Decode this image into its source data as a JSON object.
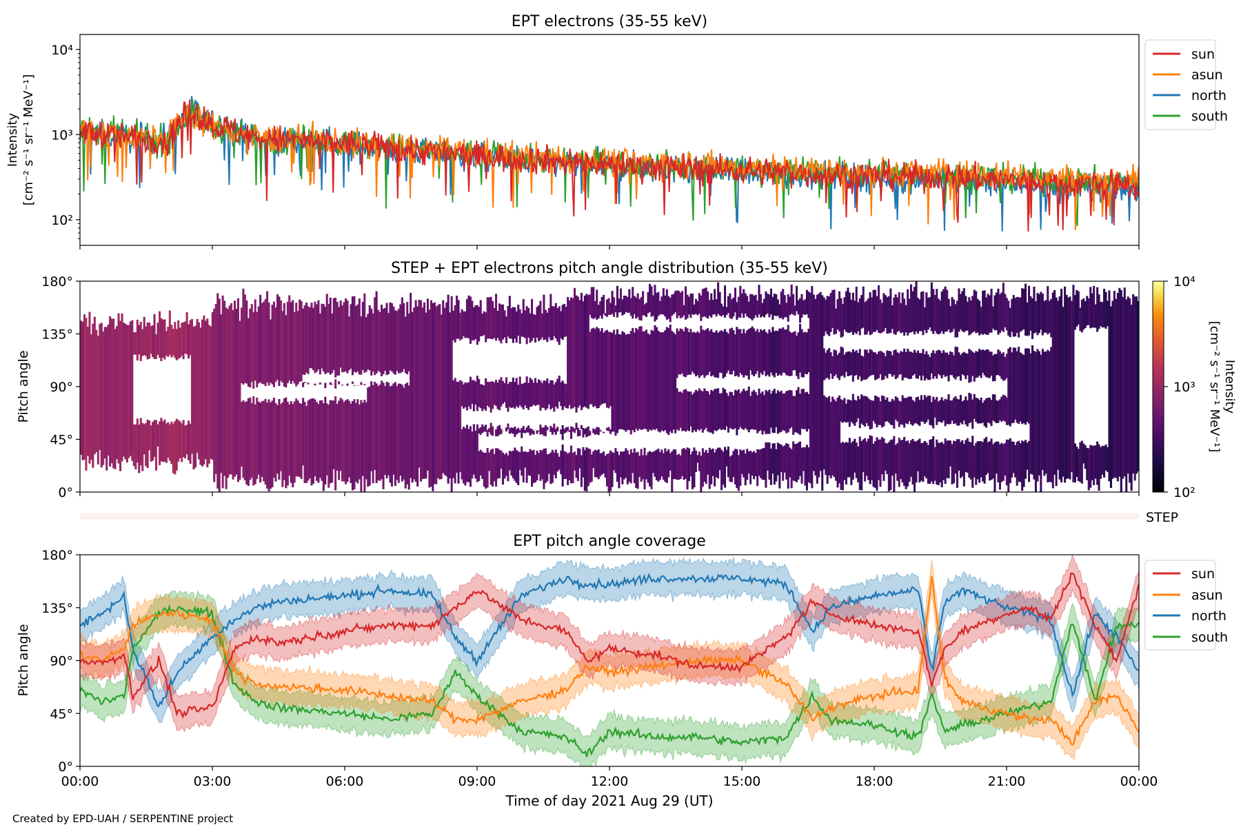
{
  "footer": "Created by EPD-UAH / SERPENTINE project",
  "colors": {
    "sun": "#d62728",
    "asun": "#ff7f0e",
    "north": "#1f77b4",
    "south": "#2ca02c",
    "step_strip": "#fdf0ea"
  },
  "chart_data": [
    {
      "type": "line",
      "title": "EPT electrons (35-55 keV)",
      "ylabel_line1": "Intensity",
      "ylabel_line2": "[cm⁻² s⁻¹ sr⁻¹ MeV⁻¹]",
      "yscale": "log",
      "ylim": [
        50,
        15000
      ],
      "yticks": [
        {
          "value": 100,
          "label": "10²"
        },
        {
          "value": 1000,
          "label": "10³"
        },
        {
          "value": 10000,
          "label": "10⁴"
        }
      ],
      "x_hours": [
        0,
        1,
        2,
        2.5,
        3,
        4,
        5,
        6,
        7,
        8,
        9,
        10,
        11,
        12,
        13,
        14,
        15,
        16,
        17,
        18,
        19,
        20,
        21,
        22,
        23,
        24
      ],
      "series": [
        {
          "name": "sun",
          "values": [
            1100,
            950,
            850,
            1900,
            1300,
            900,
            850,
            780,
            700,
            620,
            560,
            520,
            480,
            450,
            420,
            400,
            380,
            360,
            340,
            330,
            320,
            310,
            290,
            270,
            260,
            250
          ]
        },
        {
          "name": "asun",
          "values": [
            1150,
            980,
            900,
            1800,
            1250,
            920,
            880,
            800,
            740,
            660,
            600,
            560,
            520,
            490,
            460,
            440,
            420,
            400,
            380,
            370,
            360,
            350,
            330,
            310,
            300,
            290
          ]
        },
        {
          "name": "north",
          "values": [
            1050,
            930,
            860,
            1950,
            1350,
            880,
            820,
            760,
            680,
            600,
            540,
            500,
            460,
            430,
            400,
            380,
            360,
            340,
            320,
            310,
            300,
            290,
            270,
            250,
            240,
            230
          ]
        },
        {
          "name": "south",
          "values": [
            1100,
            960,
            880,
            1700,
            1280,
            900,
            860,
            790,
            720,
            640,
            580,
            540,
            500,
            470,
            440,
            420,
            400,
            380,
            360,
            350,
            340,
            330,
            310,
            290,
            280,
            270
          ]
        }
      ],
      "legend": [
        "sun",
        "asun",
        "north",
        "south"
      ],
      "legend_position": "outside-right"
    },
    {
      "type": "heatmap",
      "title": "STEP + EPT electrons pitch angle distribution (35-55 keV)",
      "ylabel": "Pitch angle",
      "ylim": [
        0,
        180
      ],
      "yticks": [
        "0°",
        "45°",
        "90°",
        "135°",
        "180°"
      ],
      "colorbar": {
        "label_line1": "Intensity",
        "label_line2": "[cm⁻² s⁻¹ sr⁻¹ MeV⁻¹]",
        "scale": "log",
        "range": [
          100,
          10000
        ],
        "ticks": [
          "10²",
          "10³",
          "10⁴"
        ],
        "colormap": "inferno"
      },
      "intensity_hours": [
        0,
        1,
        2,
        3,
        4,
        6,
        8,
        10,
        12,
        14,
        16,
        18,
        20,
        22,
        24
      ],
      "intensity_values": [
        1000,
        900,
        1100,
        800,
        700,
        600,
        520,
        460,
        420,
        380,
        340,
        320,
        300,
        270,
        250
      ]
    },
    {
      "type": "strip",
      "label": "STEP"
    },
    {
      "type": "line",
      "title": "EPT pitch angle coverage",
      "ylabel": "Pitch angle",
      "ylim": [
        0,
        180
      ],
      "yticks": [
        "0°",
        "45°",
        "90°",
        "135°",
        "180°"
      ],
      "xlabel": "Time of day 2021 Aug 29 (UT)",
      "xticks": [
        "00:00",
        "03:00",
        "06:00",
        "09:00",
        "12:00",
        "15:00",
        "18:00",
        "21:00",
        "00:00"
      ],
      "x_hours": [
        0,
        0.5,
        1,
        1.2,
        1.8,
        2.2,
        3,
        3.5,
        4,
        4.5,
        6,
        7,
        8,
        8.5,
        9,
        10,
        11,
        11.5,
        12,
        13,
        14,
        15,
        16,
        16.6,
        17,
        18,
        19,
        19.3,
        19.6,
        20,
        21,
        21.5,
        22,
        22.5,
        23,
        23.5,
        24
      ],
      "series": [
        {
          "name": "sun",
          "values": [
            90,
            88,
            95,
            60,
            90,
            45,
            50,
            100,
            110,
            105,
            115,
            120,
            120,
            135,
            150,
            125,
            115,
            90,
            100,
            95,
            85,
            85,
            110,
            140,
            130,
            120,
            115,
            70,
            100,
            115,
            130,
            135,
            125,
            165,
            120,
            90,
            155
          ]
        },
        {
          "name": "asun",
          "values": [
            95,
            90,
            100,
            120,
            130,
            130,
            125,
            80,
            70,
            68,
            65,
            60,
            55,
            40,
            40,
            55,
            65,
            85,
            80,
            85,
            90,
            90,
            70,
            40,
            50,
            60,
            65,
            160,
            75,
            55,
            45,
            40,
            40,
            20,
            55,
            60,
            30
          ]
        },
        {
          "name": "north",
          "values": [
            120,
            130,
            145,
            100,
            50,
            80,
            110,
            125,
            135,
            140,
            145,
            150,
            145,
            110,
            90,
            145,
            160,
            155,
            155,
            160,
            160,
            160,
            155,
            115,
            135,
            145,
            150,
            80,
            140,
            150,
            135,
            130,
            125,
            60,
            130,
            110,
            80
          ]
        },
        {
          "name": "south",
          "values": [
            65,
            55,
            60,
            100,
            130,
            135,
            130,
            70,
            55,
            50,
            45,
            40,
            45,
            80,
            60,
            30,
            25,
            10,
            30,
            25,
            25,
            20,
            25,
            60,
            40,
            35,
            25,
            60,
            30,
            35,
            45,
            50,
            55,
            125,
            55,
            120,
            120
          ]
        }
      ],
      "legend": [
        "sun",
        "asun",
        "north",
        "south"
      ],
      "legend_position": "outside-right"
    }
  ]
}
